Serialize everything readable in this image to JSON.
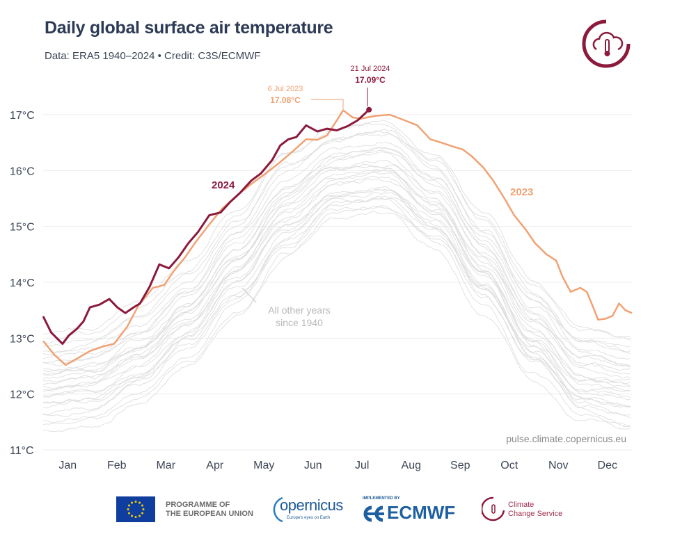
{
  "header": {
    "title": "Daily global surface air temperature",
    "subtitle": "Data: ERA5 1940–2024 • Credit: C3S/ECMWF",
    "logo_icon": "climate-change-service-logo"
  },
  "chart_data": {
    "type": "line",
    "title": "Daily global surface air temperature",
    "subtitle": "Data: ERA5 1940–2024 • Credit: C3S/ECMWF",
    "x_unit": "day of year",
    "x_ticks": [
      "Jan",
      "Feb",
      "Mar",
      "Apr",
      "May",
      "Jun",
      "Jul",
      "Aug",
      "Sep",
      "Oct",
      "Nov",
      "Dec"
    ],
    "y_ticks": [
      "11°C",
      "12°C",
      "13°C",
      "14°C",
      "15°C",
      "16°C",
      "17°C"
    ],
    "ylim": [
      11,
      17
    ],
    "xlim": [
      0,
      365
    ],
    "grid": "horizontal",
    "colors": {
      "2024": "#8b1a3c",
      "2023": "#f0a273",
      "other": "#d9d9d9"
    },
    "series": [
      {
        "name": "2024",
        "color": "#8b1a3c",
        "points": [
          [
            0,
            13.39
          ],
          [
            5,
            13.1
          ],
          [
            12,
            12.9
          ],
          [
            16,
            13.05
          ],
          [
            21,
            13.17
          ],
          [
            25,
            13.3
          ],
          [
            29,
            13.55
          ],
          [
            35,
            13.6
          ],
          [
            41,
            13.7
          ],
          [
            46,
            13.55
          ],
          [
            51,
            13.45
          ],
          [
            56,
            13.55
          ],
          [
            60,
            13.62
          ],
          [
            66,
            13.92
          ],
          [
            72,
            14.32
          ],
          [
            78,
            14.25
          ],
          [
            84,
            14.45
          ],
          [
            90,
            14.7
          ],
          [
            96,
            14.9
          ],
          [
            103,
            15.2
          ],
          [
            110,
            15.25
          ],
          [
            116,
            15.44
          ],
          [
            122,
            15.6
          ],
          [
            129,
            15.82
          ],
          [
            135,
            15.95
          ],
          [
            142,
            16.19
          ],
          [
            147,
            16.45
          ],
          [
            152,
            16.56
          ],
          [
            157,
            16.6
          ],
          [
            163,
            16.81
          ],
          [
            170,
            16.7
          ],
          [
            176,
            16.75
          ],
          [
            182,
            16.72
          ],
          [
            189,
            16.8
          ],
          [
            195,
            16.9
          ],
          [
            202,
            17.09
          ]
        ]
      },
      {
        "name": "2023",
        "color": "#f0a273",
        "points": [
          [
            0,
            12.95
          ],
          [
            7,
            12.7
          ],
          [
            14,
            12.52
          ],
          [
            22,
            12.65
          ],
          [
            29,
            12.77
          ],
          [
            37,
            12.85
          ],
          [
            44,
            12.9
          ],
          [
            52,
            13.2
          ],
          [
            59,
            13.58
          ],
          [
            68,
            13.9
          ],
          [
            75,
            13.95
          ],
          [
            81,
            14.2
          ],
          [
            88,
            14.45
          ],
          [
            94,
            14.7
          ],
          [
            102,
            15.0
          ],
          [
            111,
            15.32
          ],
          [
            120,
            15.55
          ],
          [
            129,
            15.76
          ],
          [
            138,
            15.95
          ],
          [
            146,
            16.13
          ],
          [
            155,
            16.35
          ],
          [
            163,
            16.56
          ],
          [
            170,
            16.55
          ],
          [
            176,
            16.63
          ],
          [
            181,
            16.85
          ],
          [
            186,
            17.08
          ],
          [
            192,
            16.95
          ],
          [
            197,
            16.93
          ],
          [
            206,
            16.98
          ],
          [
            215,
            17.0
          ],
          [
            224,
            16.9
          ],
          [
            232,
            16.81
          ],
          [
            240,
            16.56
          ],
          [
            247,
            16.5
          ],
          [
            253,
            16.44
          ],
          [
            260,
            16.38
          ],
          [
            266,
            16.25
          ],
          [
            273,
            16.05
          ],
          [
            279,
            15.82
          ],
          [
            286,
            15.5
          ],
          [
            292,
            15.2
          ],
          [
            299,
            14.95
          ],
          [
            305,
            14.7
          ],
          [
            312,
            14.5
          ],
          [
            318,
            14.39
          ],
          [
            322,
            14.1
          ],
          [
            327,
            13.83
          ],
          [
            333,
            13.9
          ],
          [
            337,
            13.83
          ],
          [
            341,
            13.55
          ],
          [
            344,
            13.33
          ],
          [
            349,
            13.35
          ],
          [
            353,
            13.4
          ],
          [
            357,
            13.62
          ],
          [
            361,
            13.5
          ],
          [
            365,
            13.45
          ]
        ]
      }
    ],
    "other_years": {
      "label": "All other years since 1940",
      "color": "#d9d9d9",
      "days": [
        0,
        31,
        59,
        90,
        120,
        151,
        181,
        212,
        243,
        273,
        304,
        334,
        365
      ],
      "lines": [
        [
          11.5,
          11.6,
          12.0,
          12.7,
          13.6,
          14.6,
          15.3,
          15.4,
          14.8,
          13.7,
          12.5,
          11.7,
          11.5
        ],
        [
          11.8,
          11.9,
          12.3,
          13.0,
          13.9,
          14.9,
          15.5,
          15.6,
          15.0,
          13.9,
          12.7,
          11.9,
          11.8
        ],
        [
          12.0,
          12.1,
          12.5,
          13.2,
          14.1,
          15.1,
          15.7,
          15.8,
          15.2,
          14.1,
          12.9,
          12.1,
          12.0
        ],
        [
          12.2,
          12.3,
          12.7,
          13.4,
          14.3,
          15.3,
          15.9,
          16.0,
          15.4,
          14.3,
          13.1,
          12.3,
          12.2
        ],
        [
          12.4,
          12.5,
          12.9,
          13.6,
          14.5,
          15.5,
          16.1,
          16.2,
          15.6,
          14.5,
          13.3,
          12.5,
          12.4
        ],
        [
          12.6,
          12.7,
          13.1,
          13.8,
          14.8,
          15.8,
          16.4,
          16.5,
          15.9,
          14.8,
          13.6,
          12.8,
          12.6
        ],
        [
          12.9,
          13.0,
          13.5,
          14.2,
          15.2,
          16.2,
          16.7,
          16.8,
          16.2,
          15.1,
          13.9,
          13.1,
          12.9
        ]
      ]
    },
    "annotations": {
      "label_2024": "2024",
      "label_2023": "2023",
      "other_years_label_line1": "All other years",
      "other_years_label_line2": "since 1940",
      "record_2023_date": "6 Jul 2023",
      "record_2023_value": "17.08°C",
      "record_2024_date": "21 Jul 2024",
      "record_2024_value": "17.09°C",
      "watermark": "pulse.climate.copernicus.eu"
    }
  },
  "footer": {
    "eu_line1": "PROGRAMME OF",
    "eu_line2": "THE EUROPEAN UNION",
    "copernicus": "opernicus",
    "copernicus_tagline": "Europe's eyes on Earth",
    "implemented_by": "IMPLEMENTED BY",
    "ecmwf": "ECMWF",
    "c3s_line1": "Climate",
    "c3s_line2": "Change Service"
  }
}
